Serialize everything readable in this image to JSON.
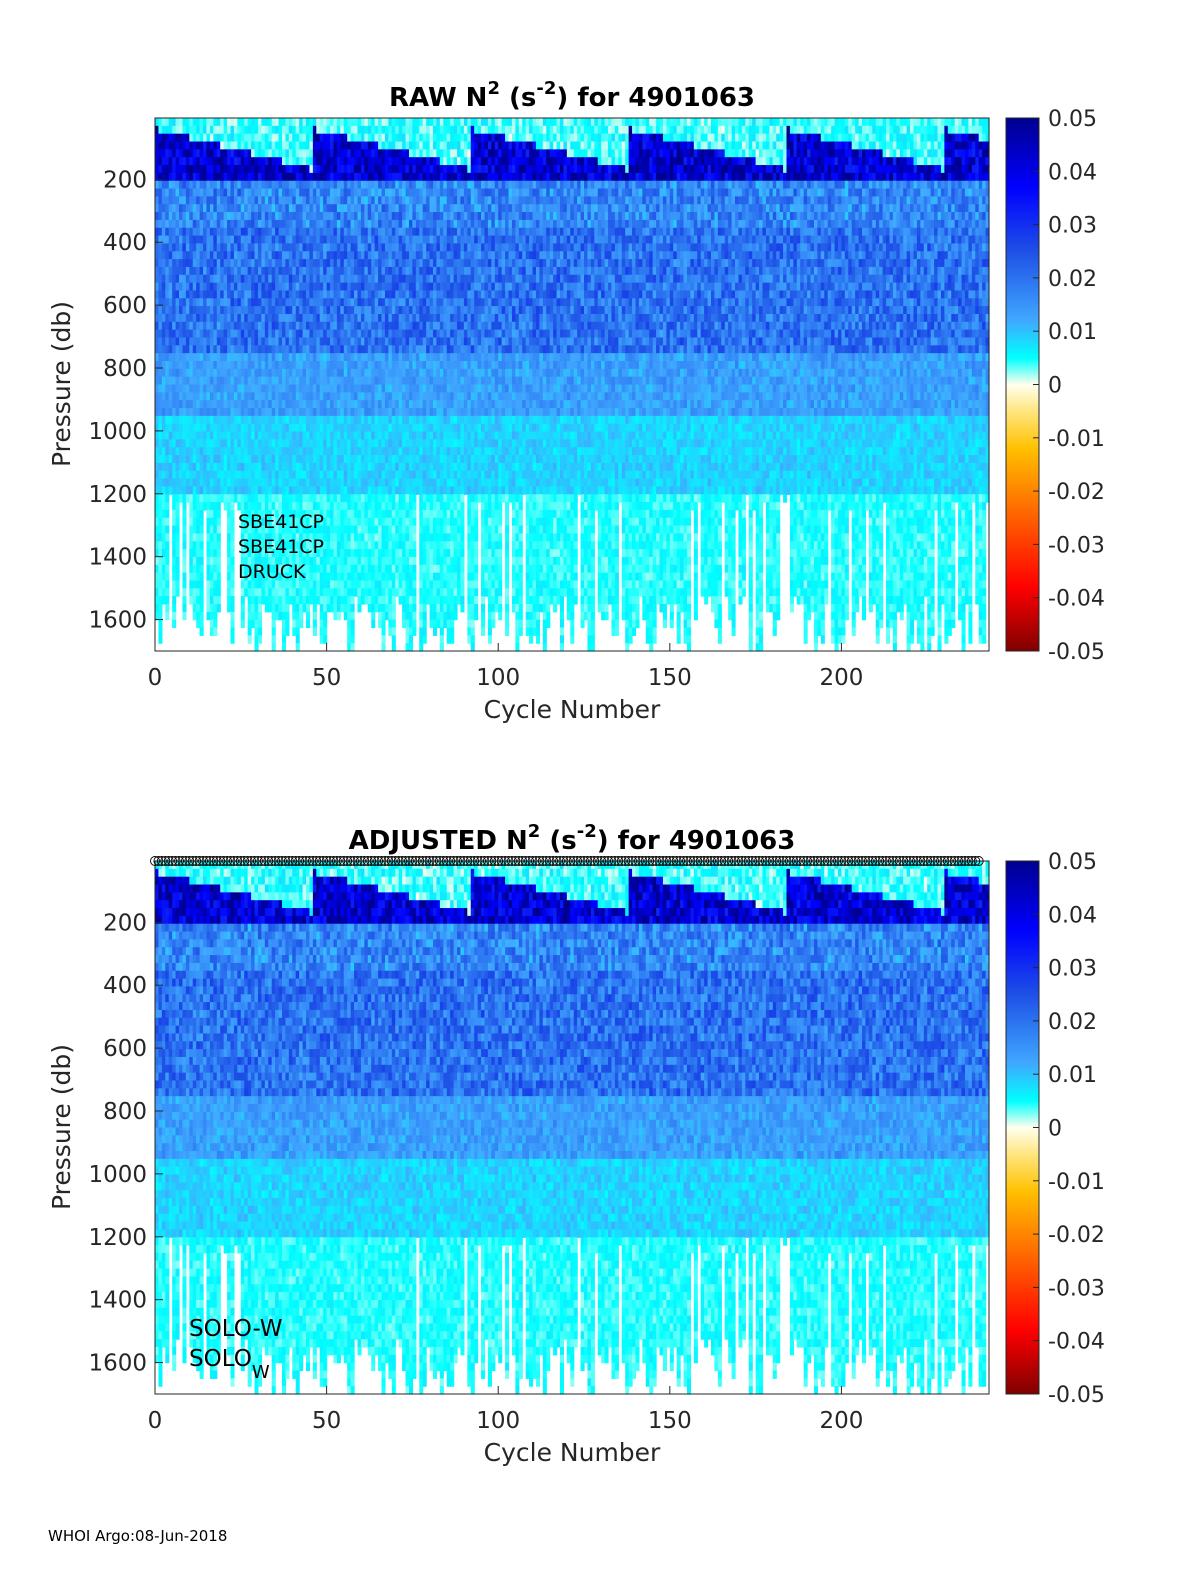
{
  "chart_data": [
    {
      "type": "heatmap",
      "title_prefix": "RAW N",
      "title_sup1": "2",
      "title_mid": " (s",
      "title_sup2": "-2",
      "title_suffix": ") for 4901063",
      "xlabel": "Cycle Number",
      "ylabel": "Pressure (db)",
      "xlim": [
        0,
        243
      ],
      "ylim": [
        1700,
        5
      ],
      "xticks": [
        "0",
        "50",
        "100",
        "150",
        "200"
      ],
      "xtick_values": [
        0,
        50,
        100,
        150,
        200
      ],
      "yticks": [
        "200",
        "400",
        "600",
        "800",
        "1000",
        "1200",
        "1400",
        "1600"
      ],
      "ytick_values": [
        200,
        400,
        600,
        800,
        1000,
        1200,
        1400,
        1600
      ],
      "annotations": [
        "SBE41CP",
        "SBE41CP",
        "DRUCK"
      ],
      "colorbar": {
        "min": -0.05,
        "max": 0.05,
        "ticks": [
          "0.05",
          "0.04",
          "0.03",
          "0.02",
          "0.01",
          "0",
          "-0.01",
          "-0.02",
          "-0.03",
          "-0.04",
          "-0.05"
        ],
        "tick_values": [
          0.05,
          0.04,
          0.03,
          0.02,
          0.01,
          0,
          -0.01,
          -0.02,
          -0.03,
          -0.04,
          -0.05
        ]
      }
    },
    {
      "type": "heatmap",
      "title_prefix": "ADJUSTED N",
      "title_sup1": "2",
      "title_mid": " (s",
      "title_sup2": "-2",
      "title_suffix": ") for 4901063",
      "xlabel": "Cycle Number",
      "ylabel": "Pressure (db)",
      "xlim": [
        0,
        243
      ],
      "ylim": [
        1700,
        5
      ],
      "xticks": [
        "0",
        "50",
        "100",
        "150",
        "200"
      ],
      "xtick_values": [
        0,
        50,
        100,
        150,
        200
      ],
      "yticks": [
        "200",
        "400",
        "600",
        "800",
        "1000",
        "1200",
        "1400",
        "1600"
      ],
      "ytick_values": [
        200,
        400,
        600,
        800,
        1000,
        1200,
        1400,
        1600
      ],
      "annotation_line1": "SOLO-W",
      "annotation_line2_base": "SOLO",
      "annotation_line2_sub": "W",
      "qc_markers": "o",
      "colorbar": {
        "min": -0.05,
        "max": 0.05,
        "ticks": [
          "0.05",
          "0.04",
          "0.03",
          "0.02",
          "0.01",
          "0",
          "-0.01",
          "-0.02",
          "-0.03",
          "-0.04",
          "-0.05"
        ],
        "tick_values": [
          0.05,
          0.04,
          0.03,
          0.02,
          0.01,
          0,
          -0.01,
          -0.02,
          -0.03,
          -0.04,
          -0.05
        ]
      }
    }
  ],
  "colors": {
    "deep_blue": "#00008f",
    "blue": "#0000ff",
    "cyan": "#00ffff",
    "zero": "#ffffee",
    "yellow": "#ffff00",
    "orange": "#ff8000",
    "red": "#ff0000",
    "dark_red": "#800000",
    "axis": "#262626"
  },
  "footer": "WHOI Argo:08-Jun-2018"
}
